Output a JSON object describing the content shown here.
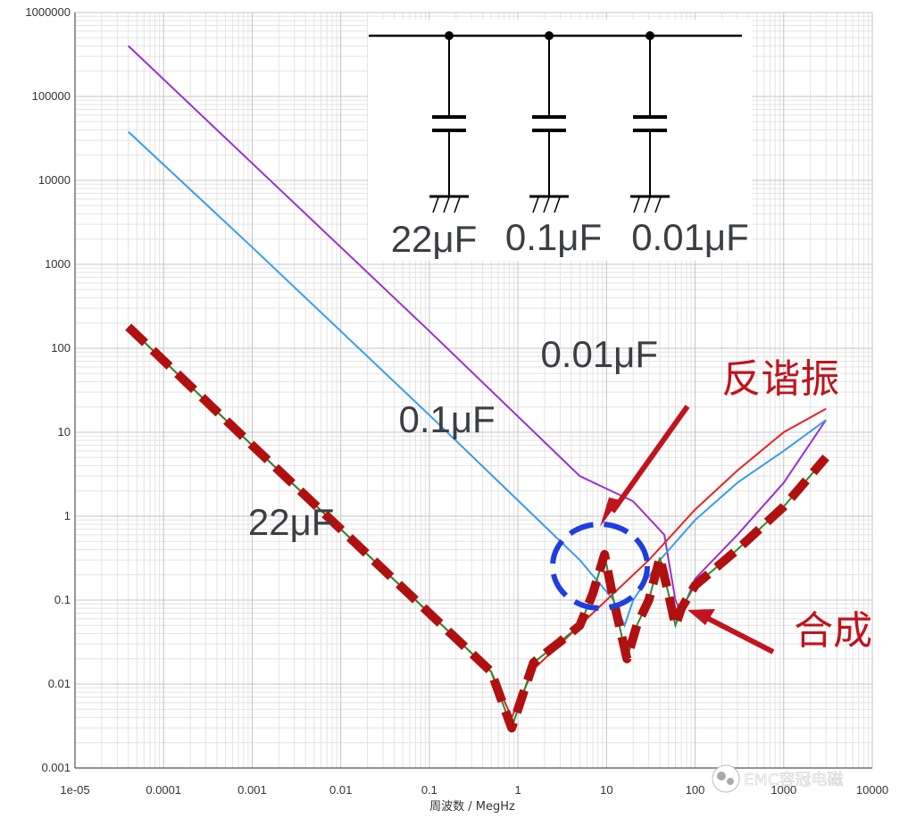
{
  "chart_data": {
    "type": "line",
    "xlabel": "周波数 / MegHz",
    "ylabel": "",
    "xscale": "log",
    "yscale": "log",
    "xlim": [
      1e-05,
      10000
    ],
    "ylim": [
      0.001,
      1000000
    ],
    "grid": true,
    "x_tick_labels": [
      "1e-05",
      "0.0001",
      "0.001",
      "0.01",
      "0.1",
      "1",
      "10",
      "100",
      "1000",
      "10000"
    ],
    "y_tick_labels": [
      "0.001",
      "0.01",
      "0.1",
      "1",
      "10",
      "100",
      "1000",
      "10000",
      "100000",
      "1000000"
    ],
    "series": [
      {
        "name": "0.01μF",
        "color": "#9b30d0",
        "x": [
          4e-05,
          0.001,
          0.1,
          5,
          20,
          45,
          60,
          70,
          100,
          300,
          1000,
          3000
        ],
        "y": [
          400000,
          16000,
          160,
          3,
          1.5,
          0.6,
          0.1,
          0.07,
          0.18,
          0.6,
          2.5,
          14
        ]
      },
      {
        "name": "0.1μF",
        "color": "#3a9bef",
        "x": [
          4e-05,
          0.001,
          0.1,
          5,
          12,
          16,
          20,
          40,
          100,
          300,
          1000,
          3000
        ],
        "y": [
          38000,
          1600,
          16,
          0.3,
          0.1,
          0.05,
          0.1,
          0.3,
          0.9,
          2.5,
          6,
          14
        ]
      },
      {
        "name": "22μF",
        "color": "#e8231f",
        "x": [
          4e-05,
          0.001,
          0.01,
          0.1,
          0.5,
          0.85,
          1.5,
          4,
          10,
          30,
          100,
          300,
          1000,
          3000
        ],
        "y": [
          180,
          7,
          0.7,
          0.07,
          0.014,
          0.004,
          0.015,
          0.04,
          0.1,
          0.3,
          1.2,
          3.5,
          10,
          19
        ]
      },
      {
        "name": "合成",
        "color": "#2f8a2f",
        "x": [
          4e-05,
          0.001,
          0.01,
          0.1,
          0.5,
          0.85,
          1.5,
          3,
          5,
          7,
          9.5,
          12,
          17,
          22,
          30,
          40,
          50,
          60,
          70,
          100,
          300,
          1000,
          3000
        ],
        "y": [
          180,
          7,
          0.7,
          0.07,
          0.014,
          0.003,
          0.018,
          0.032,
          0.05,
          0.12,
          0.35,
          0.1,
          0.02,
          0.05,
          0.1,
          0.32,
          0.12,
          0.05,
          0.08,
          0.15,
          0.4,
          1.3,
          5
        ]
      }
    ],
    "composite_line_color": "#b01010",
    "circle_color": "#1f3de0",
    "annotations": [
      {
        "text": "0.01μF",
        "x": 1.8,
        "y": 60
      },
      {
        "text": "0.1μF",
        "x": 0.045,
        "y": 10
      },
      {
        "text": "22μF",
        "x": 0.0009,
        "y": 0.6
      },
      {
        "text": "反谐振",
        "x": 200,
        "y": 30
      },
      {
        "text": "合成",
        "x": 1300,
        "y": 0.03
      }
    ],
    "circuit_labels": [
      "22μF",
      "0.1μF",
      "0.01μF"
    ]
  },
  "watermark": "EMC容冠电磁"
}
